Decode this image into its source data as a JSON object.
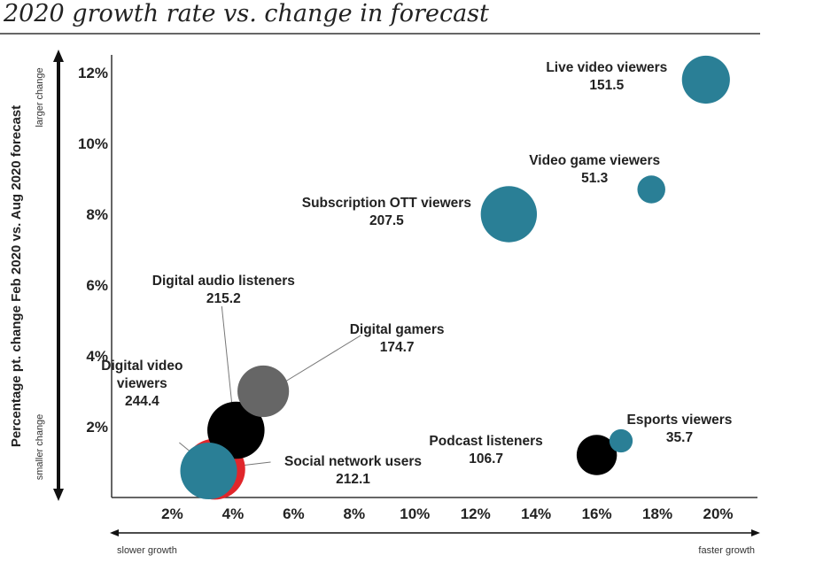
{
  "chart_data": {
    "type": "scatter",
    "title": "2020 growth rate vs. change in forecast",
    "ylabel": "Percentage pt. change Feb 2020 vs. Aug 2020 forecast",
    "y_top_note": "larger change",
    "y_bottom_note": "smaller change",
    "x_left_note": "slower growth",
    "x_right_note": "faster growth",
    "xlim": [
      0,
      21.3
    ],
    "ylim": [
      0,
      12.5
    ],
    "x_ticks": [
      {
        "value": 2,
        "label": "2%"
      },
      {
        "value": 4,
        "label": "4%"
      },
      {
        "value": 6,
        "label": "6%"
      },
      {
        "value": 8,
        "label": "8%"
      },
      {
        "value": 10,
        "label": "10%"
      },
      {
        "value": 12,
        "label": "12%"
      },
      {
        "value": 14,
        "label": "14%"
      },
      {
        "value": 16,
        "label": "16%"
      },
      {
        "value": 18,
        "label": "18%"
      },
      {
        "value": 20,
        "label": "20%"
      }
    ],
    "y_ticks": [
      {
        "value": 2,
        "label": "2%"
      },
      {
        "value": 4,
        "label": "4%"
      },
      {
        "value": 6,
        "label": "6%"
      },
      {
        "value": 8,
        "label": "8%"
      },
      {
        "value": 10,
        "label": "10%"
      },
      {
        "value": 12,
        "label": "12%"
      }
    ],
    "points": [
      {
        "name": "Live video viewers",
        "value_label": "151.5",
        "size": 151.5,
        "x": 19.6,
        "y": 11.8,
        "color": "#2a7f96"
      },
      {
        "name": "Video game viewers",
        "value_label": "51.3",
        "size": 51.3,
        "x": 17.8,
        "y": 8.7,
        "color": "#2a7f96"
      },
      {
        "name": "Subscription OTT viewers",
        "value_label": "207.5",
        "size": 207.5,
        "x": 13.1,
        "y": 8.0,
        "color": "#2a7f96"
      },
      {
        "name": "Digital audio listeners",
        "value_label": "215.2",
        "size": 215.2,
        "x": 4.1,
        "y": 1.9,
        "color": "#000000"
      },
      {
        "name": "Digital gamers",
        "value_label": "174.7",
        "size": 174.7,
        "x": 5.0,
        "y": 3.0,
        "color": "#666666"
      },
      {
        "name": "Digital video viewers",
        "value_label": "244.4",
        "size": 244.4,
        "x": 3.4,
        "y": 0.8,
        "color": "#e0262b"
      },
      {
        "name": "Social network users",
        "value_label": "212.1",
        "size": 212.1,
        "x": 3.2,
        "y": 0.75,
        "color": "#2a7f96"
      },
      {
        "name": "Podcast listeners",
        "value_label": "106.7",
        "size": 106.7,
        "x": 16.0,
        "y": 1.2,
        "color": "#000000"
      },
      {
        "name": "Esports viewers",
        "value_label": "35.7",
        "size": 35.7,
        "x": 16.8,
        "y": 1.6,
        "color": "#2a7f96"
      }
    ]
  }
}
